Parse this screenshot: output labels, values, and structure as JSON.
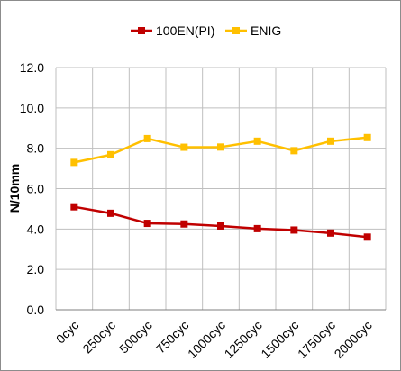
{
  "chart_data": {
    "type": "line",
    "title": "",
    "xlabel": "",
    "ylabel": "N/10mm",
    "categories": [
      "0cyc",
      "250cyc",
      "500cyc",
      "750cyc",
      "1000cyc",
      "1250cyc",
      "1500cyc",
      "1750cyc",
      "2000cyc"
    ],
    "ylim": [
      0,
      12
    ],
    "yticks": [
      "0.0",
      "2.0",
      "4.0",
      "6.0",
      "8.0",
      "10.0",
      "12.0"
    ],
    "grid": true,
    "legend_position": "top",
    "series": [
      {
        "name": "100EN(PI)",
        "color": "#c00000",
        "marker": "square",
        "values": [
          5.1,
          4.78,
          4.28,
          4.25,
          4.15,
          4.02,
          3.95,
          3.8,
          3.6
        ]
      },
      {
        "name": "ENIG",
        "color": "#ffc000",
        "marker": "square",
        "values": [
          7.3,
          7.68,
          8.48,
          8.05,
          8.06,
          8.35,
          7.88,
          8.35,
          8.53
        ]
      }
    ]
  }
}
